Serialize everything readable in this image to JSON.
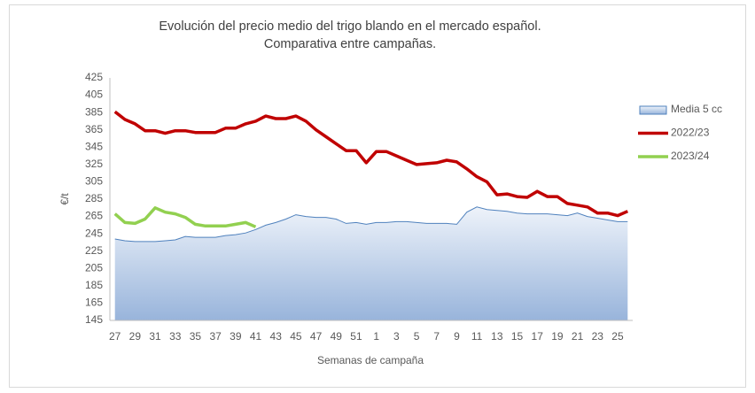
{
  "chart_data": {
    "type": "line",
    "title": [
      "Evolución del precio medio del trigo blando en el mercado español.",
      "Comparativa entre campañas."
    ],
    "x_label": "Semanas de campaña",
    "y_label": "€/t",
    "categories": [
      "27",
      null,
      "29",
      null,
      "31",
      null,
      "33",
      null,
      "35",
      null,
      "37",
      null,
      "39",
      null,
      "41",
      null,
      "43",
      null,
      "45",
      null,
      "47",
      null,
      "49",
      null,
      "51",
      null,
      "1",
      null,
      "3",
      null,
      "5",
      null,
      "7",
      null,
      "9",
      null,
      "11",
      null,
      "13",
      null,
      "15",
      null,
      "17",
      null,
      "19",
      null,
      "21",
      null,
      "23",
      null,
      "25",
      null
    ],
    "ylim": [
      145,
      425
    ],
    "yticks": [
      145,
      165,
      185,
      205,
      225,
      245,
      265,
      285,
      305,
      325,
      345,
      365,
      385,
      405,
      425
    ],
    "grid": false,
    "legend": "right",
    "series": [
      {
        "name": "Media 5 cc",
        "kind": "area",
        "color": "#4f81bd",
        "values": [
          239,
          237,
          236,
          236,
          236,
          237,
          238,
          242,
          241,
          241,
          241,
          243,
          244,
          246,
          250,
          255,
          258,
          262,
          267,
          265,
          264,
          264,
          262,
          257,
          258,
          256,
          258,
          258,
          259,
          259,
          258,
          257,
          257,
          257,
          256,
          270,
          276,
          273,
          272,
          271,
          269,
          268,
          268,
          268,
          267,
          266,
          269,
          265,
          263,
          261,
          259,
          259
        ]
      },
      {
        "name": "2022/23",
        "kind": "line",
        "color": "#c00000",
        "values": [
          386,
          377,
          372,
          364,
          364,
          361,
          364,
          364,
          362,
          362,
          362,
          367,
          367,
          372,
          375,
          381,
          378,
          378,
          381,
          375,
          365,
          357,
          349,
          341,
          341,
          327,
          340,
          340,
          335,
          330,
          325,
          326,
          327,
          330,
          328,
          320,
          311,
          305,
          290,
          291,
          288,
          287,
          294,
          288,
          288,
          280,
          278,
          276,
          269,
          269,
          266,
          271
        ]
      },
      {
        "name": "2023/24",
        "kind": "line",
        "color": "#92d050",
        "values": [
          268,
          258,
          257,
          262,
          275,
          270,
          268,
          264,
          256,
          254,
          254,
          254,
          256,
          258,
          253,
          null,
          null,
          null,
          null,
          null,
          null,
          null,
          null,
          null,
          null,
          null,
          null,
          null,
          null,
          null,
          null,
          null,
          null,
          null,
          null,
          null,
          null,
          null,
          null,
          null,
          null,
          null,
          null,
          null,
          null,
          null,
          null,
          null,
          null,
          null,
          null,
          null
        ]
      }
    ]
  }
}
